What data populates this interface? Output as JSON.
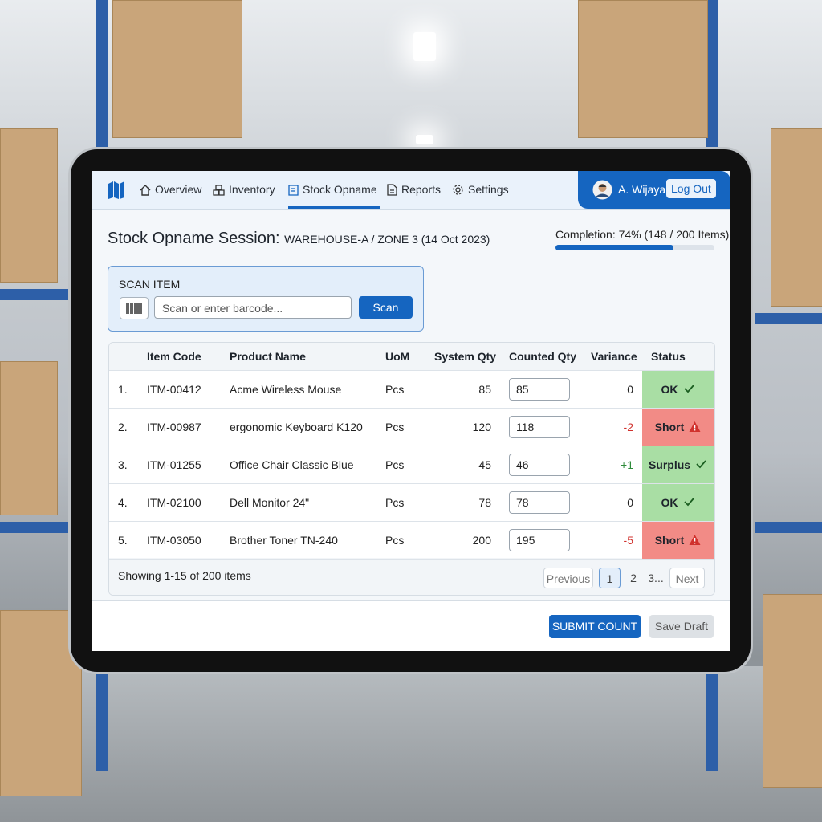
{
  "nav": {
    "items": [
      "Overview",
      "Inventory",
      "Stock Opname",
      "Reports",
      "Settings"
    ],
    "user": "A. Wijaya",
    "logout": "Log Out"
  },
  "session": {
    "title": "Stock Opname Session:",
    "location": "WAREHOUSE-A / ZONE 3 (14 Oct 2023)",
    "completion": "Completion: 74% (148 / 200 Items)",
    "progress": 74
  },
  "scan": {
    "label": "SCAN ITEM",
    "placeholder": "Scan or enter barcode...",
    "button": "Scan"
  },
  "table": {
    "headers": [
      "Item Code",
      "Product Name",
      "UoM",
      "System Qty",
      "Counted Qty",
      "Variance",
      "Status"
    ],
    "rows": [
      {
        "no": "1.",
        "code": "ITM-00412",
        "name": "Acme Wireless Mouse",
        "uom": "Pcs",
        "system": "85",
        "counted": "85",
        "variance": "0",
        "variance_color": "#222222",
        "status": "OK",
        "status_color": "#a9dea4",
        "status_icon": "check"
      },
      {
        "no": "2.",
        "code": "ITM-00987",
        "name": "ergonomic Keyboard K120",
        "uom": "Pcs",
        "system": "120",
        "counted": "118",
        "variance": "-2",
        "variance_color": "#d0312d",
        "status": "Short",
        "status_color": "#f28b86",
        "status_icon": "warning"
      },
      {
        "no": "3.",
        "code": "ITM-01255",
        "name": "Office Chair Classic Blue",
        "uom": "Pcs",
        "system": "45",
        "counted": "46",
        "variance": "+1",
        "variance_color": "#2e8b3a",
        "status": "Surplus",
        "status_color": "#a9dea4",
        "status_icon": "check"
      },
      {
        "no": "4.",
        "code": "ITM-02100",
        "name": "Dell Monitor 24\"",
        "uom": "Pcs",
        "system": "78",
        "counted": "78",
        "variance": "0",
        "variance_color": "#222222",
        "status": "OK",
        "status_color": "#a9dea4",
        "status_icon": "check"
      },
      {
        "no": "5.",
        "code": "ITM-03050",
        "name": "Brother Toner TN-240",
        "uom": "Pcs",
        "system": "200",
        "counted": "195",
        "variance": "-5",
        "variance_color": "#d0312d",
        "status": "Short",
        "status_color": "#f28b86",
        "status_icon": "warning"
      }
    ]
  },
  "footer": {
    "showing": "Showing 1-15 of 200 items",
    "pagination": [
      "Previous",
      "1",
      "2",
      "3...",
      "Next"
    ]
  },
  "actions": {
    "submit": "SUBMIT COUNT",
    "save": "Save Draft"
  }
}
